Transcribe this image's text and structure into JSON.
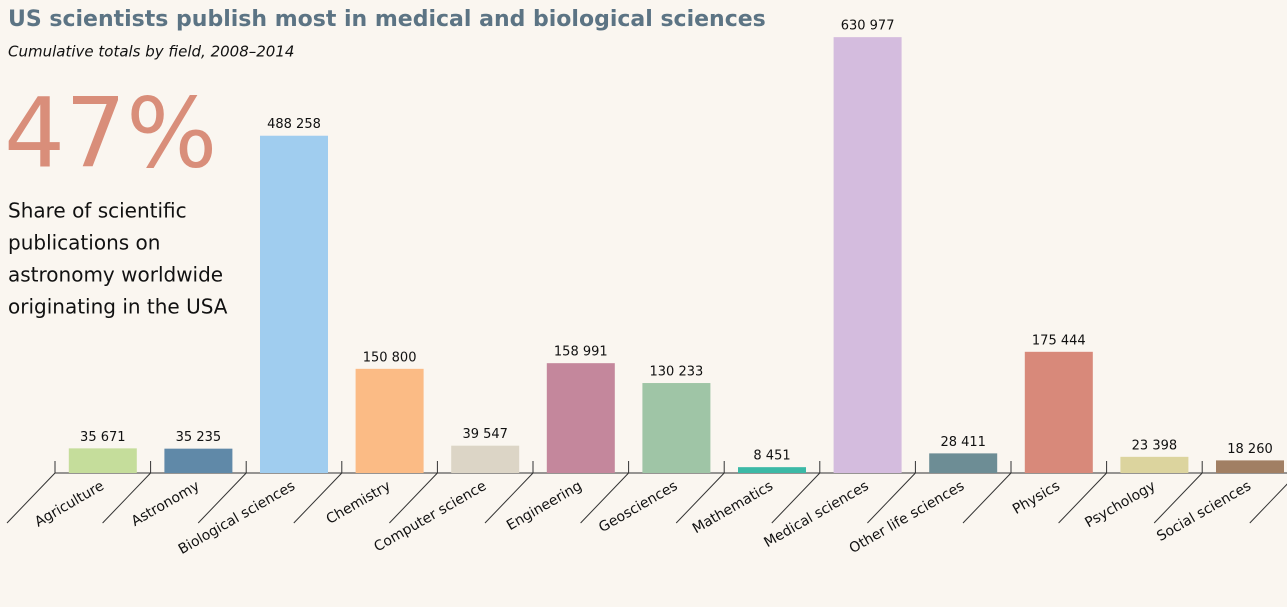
{
  "chart_data": {
    "type": "bar",
    "title": "US scientists publish most in medical and biological sciences",
    "subtitle": "Cumulative totals by field, 2008–2014",
    "annotation": {
      "big": "47%",
      "lines": [
        "Share of scientific",
        "publications on",
        "astronomy worldwide",
        "originating in the USA"
      ]
    },
    "categories": [
      "Agriculture",
      "Astronomy",
      "Biological sciences",
      "Chemistry",
      "Computer science",
      "Engineering",
      "Geosciences",
      "Mathematics",
      "Medical sciences",
      "Other life sciences",
      "Physics",
      "Psychology",
      "Social sciences"
    ],
    "values": [
      35671,
      35235,
      488258,
      150800,
      39547,
      158991,
      130233,
      8451,
      630977,
      28411,
      175444,
      23398,
      18260
    ],
    "value_labels": [
      "35 671",
      "35 235",
      "488 258",
      "150 800",
      "39 547",
      "158 991",
      "130 233",
      "8 451",
      "630 977",
      "28 411",
      "175 444",
      "23 398",
      "18 260"
    ],
    "colors": [
      "#c5dd9b",
      "#6089a8",
      "#a0cdef",
      "#fbbb85",
      "#dcd5c6",
      "#c4879c",
      "#9fc5a6",
      "#3bb9a6",
      "#d4bcde",
      "#6d8d95",
      "#d8897a",
      "#dcd49e",
      "#a17f63"
    ],
    "ylim": [
      0,
      650000
    ]
  }
}
